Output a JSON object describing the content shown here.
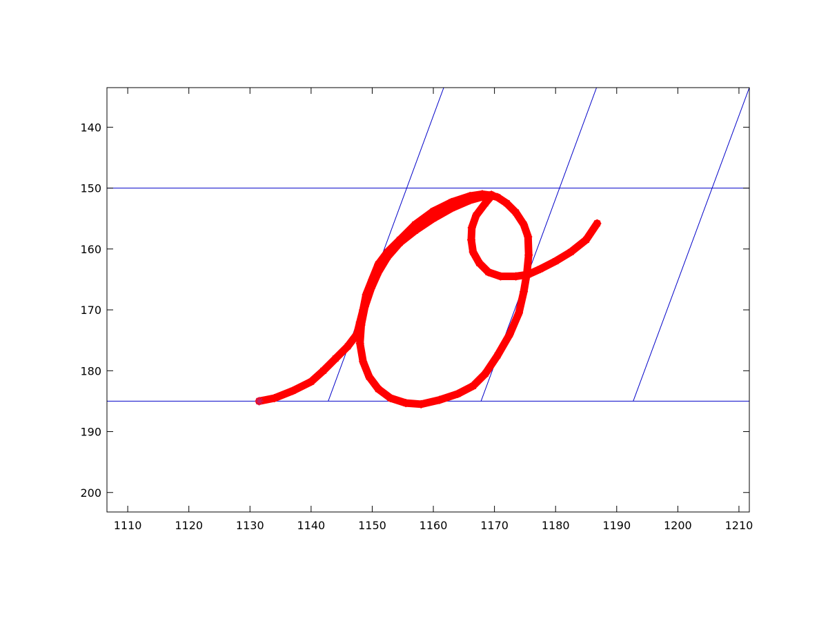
{
  "chart_data": {
    "type": "line",
    "title": "",
    "xlabel": "",
    "ylabel": "",
    "xlim": [
      1106.6,
      1211.7
    ],
    "ylim": [
      203.2,
      133.5
    ],
    "y_reversed": true,
    "grid": false,
    "x_ticks": [
      1110,
      1120,
      1130,
      1140,
      1150,
      1160,
      1170,
      1180,
      1190,
      1200,
      1210
    ],
    "y_ticks": [
      140,
      150,
      160,
      170,
      180,
      190,
      200
    ],
    "guide_color": "#0000c8",
    "stroke_color": "#ff0000",
    "guide_lines": {
      "horizontal_y": [
        150,
        185
      ],
      "slanted": [
        {
          "x": [
            1142.8,
            1161.7
          ],
          "y": [
            185,
            133.5
          ]
        },
        {
          "x": [
            1167.8,
            1186.7
          ],
          "y": [
            185,
            133.5
          ]
        },
        {
          "x": [
            1192.7,
            1211.7
          ],
          "y": [
            185,
            133.5
          ]
        }
      ]
    },
    "series": [
      {
        "marker": "*",
        "x": [
          1131.5,
          1134,
          1137,
          1140,
          1142,
          1144,
          1146,
          1147.5,
          1148,
          1148.5,
          1149,
          1150,
          1151,
          1152.5,
          1154.5,
          1157,
          1160,
          1163,
          1166,
          1168,
          1169.5,
          1170.5,
          1172,
          1173.5,
          1174.8,
          1175.5,
          1175.6,
          1175.3,
          1174.8,
          1174,
          1172.5,
          1170.5,
          1168.5,
          1166.5,
          1164,
          1161,
          1158,
          1155.5,
          1153,
          1151,
          1149.5,
          1148.5,
          1148,
          1148.2,
          1148.8,
          1149.8,
          1151,
          1152.5,
          1154.5,
          1157,
          1160,
          1163,
          1166,
          1168.5,
          1169.5,
          1169.5,
          1168.5,
          1167,
          1166.3,
          1166.2,
          1166.5,
          1167.5,
          1169,
          1171,
          1173.5,
          1175.5,
          1177.5,
          1180,
          1182.5,
          1185,
          1186.8
        ],
        "y": [
          185,
          184.5,
          183.3,
          181.8,
          180,
          178,
          176,
          174,
          172,
          170,
          167.5,
          165,
          162.5,
          160.5,
          158.5,
          156,
          153.8,
          152.3,
          151.3,
          151,
          151.2,
          151.5,
          152.5,
          154,
          156,
          158,
          161,
          164,
          167,
          170.5,
          174,
          177.5,
          180.5,
          182.5,
          183.8,
          184.8,
          185.5,
          185.3,
          184.5,
          183,
          181,
          178.5,
          175.5,
          172.5,
          169.5,
          166.5,
          163.8,
          161.3,
          159,
          157,
          155,
          153.3,
          152,
          151.3,
          151.1,
          151.3,
          152.5,
          154.5,
          156.5,
          158.5,
          160.5,
          162.3,
          163.8,
          164.5,
          164.5,
          164.2,
          163.3,
          162,
          160.5,
          158.5,
          155.8
        ]
      }
    ]
  }
}
